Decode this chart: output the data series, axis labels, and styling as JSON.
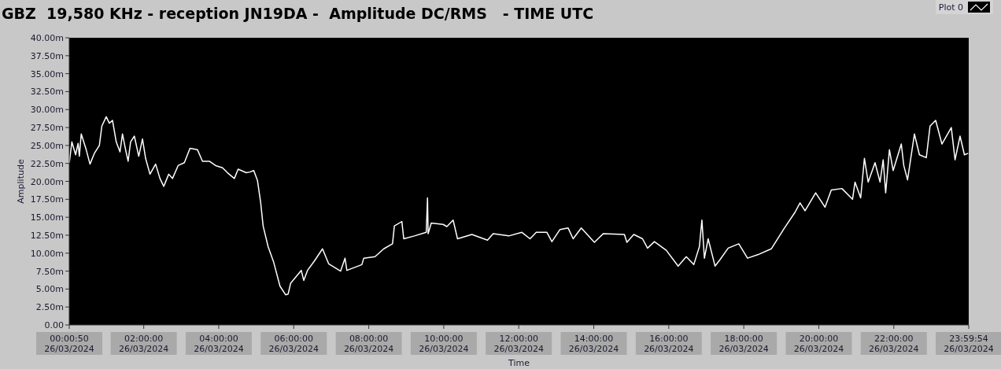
{
  "chart_data": {
    "type": "line",
    "title": "GBZ  19,580 KHz - reception JN19DA -  Amplitude DC/RMS   - TIME UTC",
    "xlabel": "Time",
    "ylabel": "Amplitude",
    "legend": "top right",
    "grid": false,
    "marker": "none",
    "line_style": "solid",
    "xlim": [
      "2024-03-26T00:00:50",
      "2024-03-26T23:59:54"
    ],
    "xticks": [
      {
        "value": "2024-03-26T00:00:50",
        "label": "00:00:50\n26/03/2024"
      },
      {
        "value": "2024-03-26T02:00",
        "label": "02:00:00\n26/03/2024"
      },
      {
        "value": "2024-03-26T04:00",
        "label": "04:00:00\n26/03/2024"
      },
      {
        "value": "2024-03-26T06:00",
        "label": "06:00:00\n26/03/2024"
      },
      {
        "value": "2024-03-26T08:00",
        "label": "08:00:00\n26/03/2024"
      },
      {
        "value": "2024-03-26T10:00",
        "label": "10:00:00\n26/03/2024"
      },
      {
        "value": "2024-03-26T12:00",
        "label": "12:00:00\n26/03/2024"
      },
      {
        "value": "2024-03-26T14:00",
        "label": "14:00:00\n26/03/2024"
      },
      {
        "value": "2024-03-26T16:00",
        "label": "16:00:00\n26/03/2024"
      },
      {
        "value": "2024-03-26T18:00",
        "label": "18:00:00\n26/03/2024"
      },
      {
        "value": "2024-03-26T20:00",
        "label": "20:00:00\n26/03/2024"
      },
      {
        "value": "2024-03-26T22:00",
        "label": "22:00:00\n26/03/2024"
      },
      {
        "value": "2024-03-26T23:59:54",
        "label": "23:59:54\n26/03/2024"
      }
    ],
    "ylim": [
      0,
      40
    ],
    "yticks": [
      {
        "value": 0,
        "label": "0.00"
      },
      {
        "value": 2.5,
        "label": "2.50m"
      },
      {
        "value": 5,
        "label": "5.00m"
      },
      {
        "value": 7.5,
        "label": "7.50m"
      },
      {
        "value": 10,
        "label": "10.00m"
      },
      {
        "value": 12.5,
        "label": "12.50m"
      },
      {
        "value": 15,
        "label": "15.00m"
      },
      {
        "value": 17.5,
        "label": "17.50m"
      },
      {
        "value": 20,
        "label": "20.00m"
      },
      {
        "value": 22.5,
        "label": "22.50m"
      },
      {
        "value": 25,
        "label": "25.00m"
      },
      {
        "value": 27.5,
        "label": "27.50m"
      },
      {
        "value": 30,
        "label": "30.00m"
      },
      {
        "value": 32.5,
        "label": "32.50m"
      },
      {
        "value": 35,
        "label": "35.00m"
      },
      {
        "value": 37.5,
        "label": "37.50m"
      },
      {
        "value": 40,
        "label": "40.00m"
      }
    ],
    "x": [
      "2024-03-26T00:01",
      "2024-03-26T00:05",
      "2024-03-26T00:11",
      "2024-03-26T00:15",
      "2024-03-26T00:17",
      "2024-03-26T00:20",
      "2024-03-26T00:28",
      "2024-03-26T00:34",
      "2024-03-26T00:41",
      "2024-03-26T00:49",
      "2024-03-26T00:53",
      "2024-03-26T01:00",
      "2024-03-26T01:05",
      "2024-03-26T01:10",
      "2024-03-26T01:16",
      "2024-03-26T01:22",
      "2024-03-26T01:26",
      "2024-03-26T01:31",
      "2024-03-26T01:35",
      "2024-03-26T01:39",
      "2024-03-26T01:45",
      "2024-03-26T01:52",
      "2024-03-26T01:58",
      "2024-03-26T02:03",
      "2024-03-26T02:10",
      "2024-03-26T02:19",
      "2024-03-26T02:26",
      "2024-03-26T02:32",
      "2024-03-26T02:40",
      "2024-03-26T02:46",
      "2024-03-26T02:55",
      "2024-03-26T03:05",
      "2024-03-26T03:14",
      "2024-03-26T03:26",
      "2024-03-26T03:34",
      "2024-03-26T03:45",
      "2024-03-26T03:55",
      "2024-03-26T04:06",
      "2024-03-26T04:14",
      "2024-03-26T04:25",
      "2024-03-26T04:31",
      "2024-03-26T04:44",
      "2024-03-26T04:50",
      "2024-03-26T04:56",
      "2024-03-26T05:02",
      "2024-03-26T05:07",
      "2024-03-26T05:11",
      "2024-03-26T05:19",
      "2024-03-26T05:28",
      "2024-03-26T05:38",
      "2024-03-26T05:47",
      "2024-03-26T05:51",
      "2024-03-26T05:55",
      "2024-03-26T06:12",
      "2024-03-26T06:16",
      "2024-03-26T06:22",
      "2024-03-26T06:33",
      "2024-03-26T06:46",
      "2024-03-26T06:56",
      "2024-03-26T07:15",
      "2024-03-26T07:22",
      "2024-03-26T07:25",
      "2024-03-26T07:49",
      "2024-03-26T07:52",
      "2024-03-26T08:10",
      "2024-03-26T08:24",
      "2024-03-26T08:38",
      "2024-03-26T08:41",
      "2024-03-26T08:53",
      "2024-03-26T08:56",
      "2024-03-26T09:13",
      "2024-03-26T09:32",
      "2024-03-26T09:34",
      "2024-03-26T09:35",
      "2024-03-26T09:40",
      "2024-03-26T09:59",
      "2024-03-26T10:05",
      "2024-03-26T10:15",
      "2024-03-26T10:22",
      "2024-03-26T10:45",
      "2024-03-26T11:10",
      "2024-03-26T11:19",
      "2024-03-26T11:44",
      "2024-03-26T12:05",
      "2024-03-26T12:18",
      "2024-03-26T12:28",
      "2024-03-26T12:45",
      "2024-03-26T12:53",
      "2024-03-26T13:06",
      "2024-03-26T13:19",
      "2024-03-26T13:27",
      "2024-03-26T13:40",
      "2024-03-26T14:01",
      "2024-03-26T14:15",
      "2024-03-26T14:49",
      "2024-03-26T14:53",
      "2024-03-26T15:04",
      "2024-03-26T15:18",
      "2024-03-26T15:26",
      "2024-03-26T15:37",
      "2024-03-26T15:56",
      "2024-03-26T16:15",
      "2024-03-26T16:28",
      "2024-03-26T16:40",
      "2024-03-26T16:49",
      "2024-03-26T16:53",
      "2024-03-26T16:57",
      "2024-03-26T17:03",
      "2024-03-26T17:14",
      "2024-03-26T17:22",
      "2024-03-26T17:35",
      "2024-03-26T17:52",
      "2024-03-26T18:06",
      "2024-03-26T18:23",
      "2024-03-26T18:44",
      "2024-03-26T19:05",
      "2024-03-26T19:22",
      "2024-03-26T19:30",
      "2024-03-26T19:38",
      "2024-03-26T19:55",
      "2024-03-26T20:10",
      "2024-03-26T20:20",
      "2024-03-26T20:37",
      "2024-03-26T20:54",
      "2024-03-26T20:58",
      "2024-03-26T21:07",
      "2024-03-26T21:13",
      "2024-03-26T21:19",
      "2024-03-26T21:30",
      "2024-03-26T21:38",
      "2024-03-26T21:43",
      "2024-03-26T21:47",
      "2024-03-26T21:53",
      "2024-03-26T21:59",
      "2024-03-26T22:12",
      "2024-03-26T22:16",
      "2024-03-26T22:22",
      "2024-03-26T22:33",
      "2024-03-26T22:41",
      "2024-03-26T22:52",
      "2024-03-26T22:58",
      "2024-03-26T23:07",
      "2024-03-26T23:17",
      "2024-03-26T23:32",
      "2024-03-26T23:38",
      "2024-03-26T23:46",
      "2024-03-26T23:53",
      "2024-03-26T23:59"
    ],
    "series": [
      {
        "name": "Plot 0",
        "color": "#ffffff",
        "values": [
          22.6,
          25.5,
          23.7,
          25.3,
          23.5,
          26.6,
          24.4,
          22.4,
          23.9,
          25.0,
          27.7,
          29.0,
          28.1,
          28.5,
          25.5,
          24.1,
          26.6,
          24.4,
          22.8,
          25.5,
          26.3,
          23.5,
          25.9,
          23.2,
          21.0,
          22.4,
          20.4,
          19.3,
          21.0,
          20.4,
          22.2,
          22.6,
          24.6,
          24.4,
          22.8,
          22.8,
          22.2,
          21.9,
          21.2,
          20.4,
          21.7,
          21.2,
          21.3,
          21.5,
          20.1,
          17.1,
          13.8,
          10.9,
          8.7,
          5.4,
          4.2,
          4.3,
          5.8,
          7.6,
          6.2,
          7.6,
          8.9,
          10.6,
          8.5,
          7.5,
          9.3,
          7.6,
          8.4,
          9.3,
          9.5,
          10.6,
          11.3,
          13.8,
          14.4,
          12.0,
          12.4,
          12.9,
          17.7,
          12.7,
          14.2,
          14.0,
          13.7,
          14.6,
          12.0,
          12.6,
          11.8,
          12.7,
          12.4,
          12.9,
          12.0,
          12.9,
          12.9,
          11.6,
          13.3,
          13.5,
          12.0,
          13.5,
          11.5,
          12.7,
          12.6,
          11.5,
          12.6,
          12.0,
          10.7,
          11.6,
          10.4,
          8.2,
          9.5,
          8.4,
          10.9,
          14.6,
          9.3,
          12.0,
          8.2,
          9.1,
          10.7,
          11.3,
          9.3,
          9.8,
          10.6,
          13.5,
          15.7,
          17.0,
          15.9,
          18.4,
          16.4,
          18.8,
          19.0,
          17.5,
          19.9,
          17.7,
          23.2,
          19.9,
          22.6,
          19.9,
          23.0,
          18.4,
          24.4,
          21.5,
          25.2,
          22.2,
          20.2,
          26.6,
          23.7,
          23.3,
          27.7,
          28.5,
          25.2,
          27.5,
          23.0,
          26.3,
          23.7,
          23.9
        ]
      }
    ]
  }
}
